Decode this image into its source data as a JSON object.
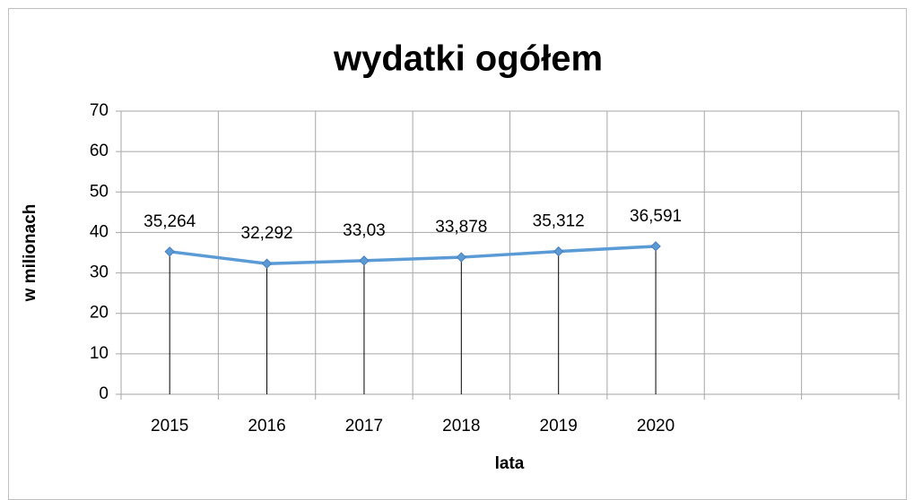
{
  "chart_data": {
    "type": "line",
    "title": "wydatki ogółem",
    "x_label": "lata",
    "y_label": "w milionach",
    "categories": [
      "2015",
      "2016",
      "2017",
      "2018",
      "2019",
      "2020",
      null,
      null
    ],
    "values": [
      35.264,
      32.292,
      33.03,
      33.878,
      35.312,
      36.591,
      null,
      null
    ],
    "value_labels": [
      "35,264",
      "32,292",
      "33,03",
      "33,878",
      "35,312",
      "36,591",
      null,
      null
    ],
    "color": "#5b9bd5",
    "drop_lines": true,
    "ylim": [
      0,
      70
    ],
    "yticks": [
      0,
      10,
      20,
      30,
      40,
      50,
      60,
      70
    ],
    "grid": true
  }
}
